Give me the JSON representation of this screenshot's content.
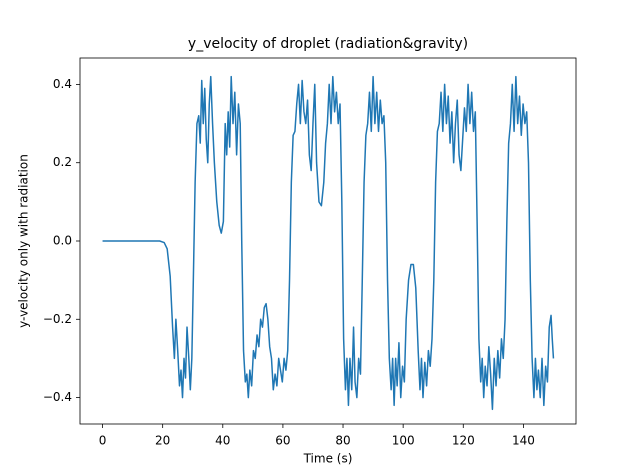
{
  "chart_data": {
    "type": "line",
    "title": "y_velocity of droplet (radiation&gravity)",
    "xlabel": "Time (s)",
    "ylabel": "y-velocity only with radiation",
    "color": "#1f77b4",
    "grid": false,
    "xlim": [
      -7.5,
      157.5
    ],
    "ylim": [
      -0.4675,
      0.4675
    ],
    "xticks": [
      0,
      20,
      40,
      60,
      80,
      100,
      120,
      140
    ],
    "yticks": [
      {
        "value": -0.4,
        "label": "−0.4"
      },
      {
        "value": -0.2,
        "label": "−0.2"
      },
      {
        "value": 0,
        "label": "0.0"
      },
      0.2,
      0.4
    ],
    "x": [
      0,
      15,
      19,
      20.5,
      21.5,
      22.5,
      23.3,
      23.9,
      24.4,
      25,
      25.6,
      26.1,
      26.6,
      27.1,
      27.6,
      28.1,
      28.7,
      29.2,
      29.7,
      30.2,
      30.8,
      31.4,
      32,
      32.5,
      33,
      33.5,
      34,
      34.5,
      35,
      35.5,
      36,
      36.6,
      37.2,
      38,
      38.8,
      39.5,
      40.2,
      40.8,
      41.3,
      41.8,
      42.3,
      42.8,
      43.4,
      44,
      44.6,
      45.2,
      45.8,
      46.3,
      46.9,
      47.5,
      48,
      48.5,
      49,
      49.6,
      50.2,
      50.8,
      51.4,
      52,
      52.6,
      53.2,
      53.8,
      54.4,
      55,
      55.6,
      56.2,
      56.8,
      57.4,
      58,
      58.6,
      59.2,
      59.8,
      60.4,
      61,
      61.6,
      62.2,
      62.8,
      63.4,
      64,
      64.6,
      65.2,
      65.8,
      66.4,
      67,
      67.6,
      68.2,
      68.8,
      69.4,
      70,
      70.6,
      71.2,
      72,
      72.8,
      73.6,
      74.2,
      74.8,
      75.4,
      76,
      76.6,
      77.2,
      77.8,
      78.4,
      79,
      79.6,
      80.2,
      80.8,
      81.3,
      81.8,
      82.3,
      82.9,
      83.5,
      84,
      84.6,
      85.2,
      85.8,
      86.4,
      87,
      87.6,
      88.2,
      88.8,
      89.4,
      90,
      90.6,
      91.2,
      91.8,
      92.4,
      93,
      93.6,
      94.2,
      94.8,
      95.4,
      96,
      96.5,
      97,
      97.5,
      98,
      98.6,
      99.2,
      99.8,
      100.4,
      101,
      101.8,
      102.6,
      103.4,
      104.2,
      105,
      105.6,
      106.1,
      106.6,
      107.2,
      107.8,
      108.4,
      109,
      109.6,
      110.2,
      110.8,
      111.4,
      112,
      112.6,
      113.2,
      113.8,
      114.4,
      115,
      115.6,
      116.2,
      116.8,
      117.4,
      118,
      118.6,
      119.2,
      119.8,
      120.4,
      121,
      121.6,
      122.2,
      122.8,
      123.4,
      124,
      124.6,
      125.2,
      125.8,
      126.3,
      126.8,
      127.3,
      127.9,
      128.5,
      129.1,
      129.7,
      130.3,
      130.9,
      131.5,
      132.1,
      132.7,
      133.3,
      133.9,
      134.5,
      135.1,
      135.7,
      136.3,
      136.9,
      137.5,
      138.1,
      138.7,
      139.3,
      139.9,
      140.5,
      141.1,
      141.7,
      142.3,
      142.9,
      143.5,
      144,
      144.5,
      145,
      145.6,
      146.2,
      146.8,
      147.4,
      148,
      148.6,
      149.2,
      149.6,
      150
    ],
    "values": [
      0,
      0,
      0,
      -0.004,
      -0.02,
      -0.09,
      -0.22,
      -0.3,
      -0.2,
      -0.28,
      -0.37,
      -0.33,
      -0.4,
      -0.3,
      -0.35,
      -0.22,
      -0.3,
      -0.38,
      -0.3,
      -0.1,
      0.15,
      0.3,
      0.32,
      0.25,
      0.41,
      0.3,
      0.39,
      0.26,
      0.2,
      0.35,
      0.42,
      0.3,
      0.2,
      0.1,
      0.04,
      0.02,
      0.05,
      0.3,
      0.22,
      0.33,
      0.24,
      0.42,
      0.3,
      0.38,
      0.22,
      0.35,
      0.3,
      0,
      -0.28,
      -0.36,
      -0.34,
      -0.4,
      -0.33,
      -0.37,
      -0.28,
      -0.3,
      -0.24,
      -0.27,
      -0.2,
      -0.22,
      -0.17,
      -0.16,
      -0.2,
      -0.27,
      -0.3,
      -0.38,
      -0.34,
      -0.37,
      -0.3,
      -0.33,
      -0.36,
      -0.3,
      -0.33,
      -0.28,
      -0.1,
      0.15,
      0.27,
      0.28,
      0.35,
      0.4,
      0.3,
      0.41,
      0.33,
      0.3,
      0.36,
      0.22,
      0.18,
      0.3,
      0.4,
      0.2,
      0.1,
      0.09,
      0.15,
      0.25,
      0.3,
      0.4,
      0.3,
      0.42,
      0.33,
      0.38,
      0.3,
      0.35,
      0.1,
      -0.25,
      -0.38,
      -0.3,
      -0.42,
      -0.3,
      -0.38,
      -0.22,
      -0.36,
      -0.4,
      -0.3,
      -0.34,
      -0.1,
      0.15,
      0.27,
      0.3,
      0.38,
      0.28,
      0.42,
      0.3,
      0.38,
      0.28,
      0.36,
      0.3,
      0.32,
      0.2,
      -0.1,
      -0.3,
      -0.38,
      -0.3,
      -0.42,
      -0.3,
      -0.37,
      -0.26,
      -0.4,
      -0.32,
      -0.36,
      -0.2,
      -0.1,
      -0.06,
      -0.06,
      -0.12,
      -0.28,
      -0.38,
      -0.3,
      -0.4,
      -0.31,
      -0.37,
      -0.28,
      -0.32,
      -0.25,
      -0.1,
      0.15,
      0.28,
      0.3,
      0.38,
      0.28,
      0.4,
      0.3,
      0.37,
      0.25,
      0.33,
      0.2,
      0.3,
      0.36,
      0.22,
      0.18,
      0.26,
      0.34,
      0.28,
      0.4,
      0.3,
      0.38,
      0.28,
      0.33,
      0.05,
      -0.25,
      -0.36,
      -0.3,
      -0.4,
      -0.32,
      -0.37,
      -0.27,
      -0.34,
      -0.43,
      -0.3,
      -0.37,
      -0.28,
      -0.35,
      -0.25,
      -0.3,
      -0.2,
      0.05,
      0.25,
      0.3,
      0.4,
      0.28,
      0.42,
      0.3,
      0.37,
      0.27,
      0.35,
      0.3,
      0.33,
      0.2,
      -0.1,
      -0.3,
      -0.4,
      -0.3,
      -0.38,
      -0.33,
      -0.4,
      -0.3,
      -0.42,
      -0.32,
      -0.36,
      -0.22,
      -0.19,
      -0.25,
      -0.3
    ]
  }
}
